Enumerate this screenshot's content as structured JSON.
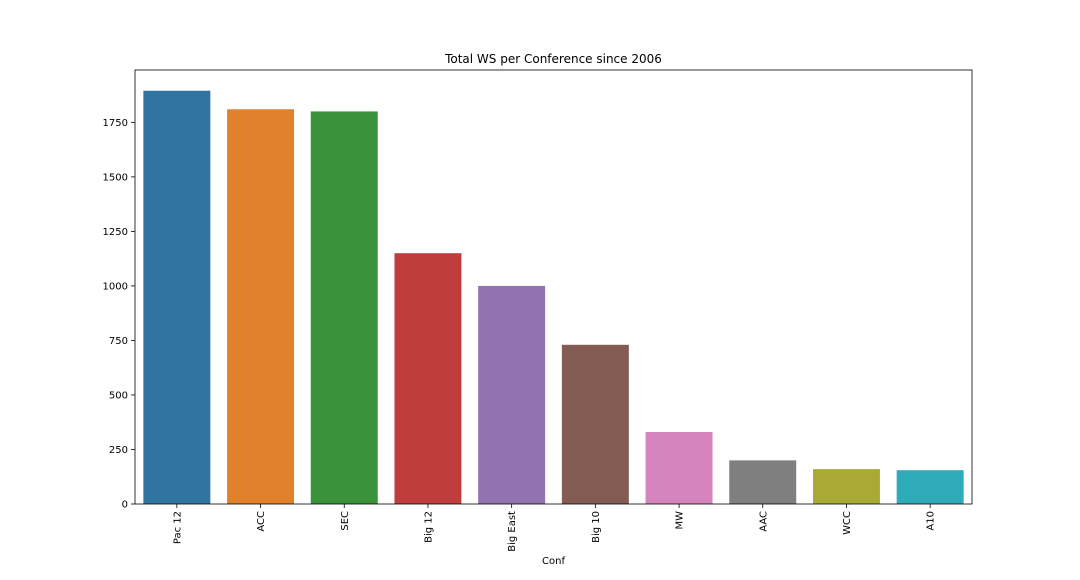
{
  "chart_data": {
    "type": "bar",
    "title": "Total WS per Conference since 2006",
    "xlabel": "Conf",
    "ylabel": "",
    "categories": [
      "Pac 12",
      "ACC",
      "SEC",
      "Big 12",
      "Big East",
      "Big 10",
      "MW",
      "AAC",
      "WCC",
      "A10"
    ],
    "values": [
      1895,
      1810,
      1800,
      1150,
      1000,
      730,
      330,
      200,
      160,
      155
    ],
    "ylim": [
      0,
      1990
    ],
    "yticks": [
      0,
      250,
      500,
      750,
      1000,
      1250,
      1500,
      1750
    ],
    "colors": [
      "#3274a1",
      "#e1812c",
      "#3a923a",
      "#c03d3e",
      "#9372b2",
      "#845b53",
      "#d684bd",
      "#7f7f7f",
      "#a9aa35",
      "#2eabb8"
    ],
    "grid": false,
    "legend": false
  }
}
